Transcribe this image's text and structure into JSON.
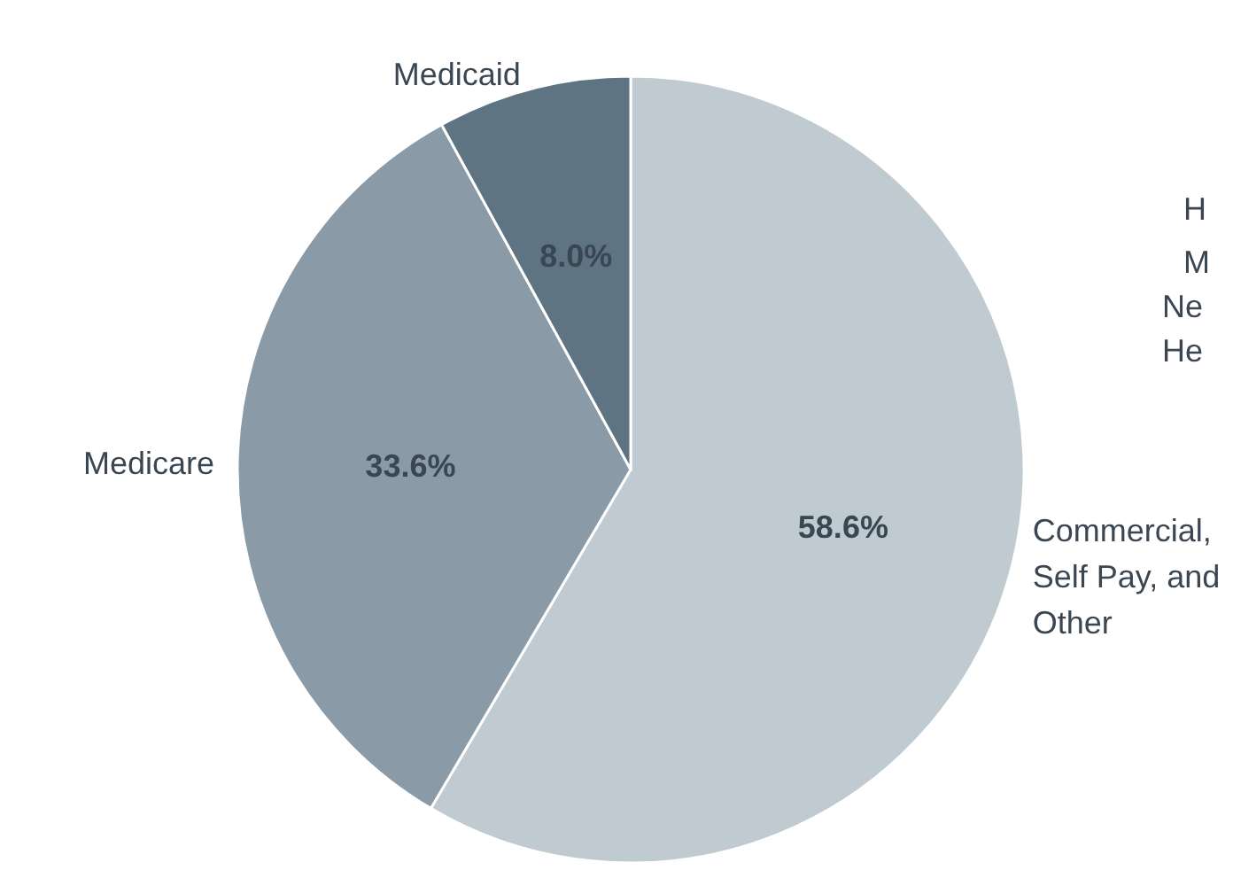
{
  "chart_data": {
    "type": "pie",
    "categories": [
      "Commercial, Self Pay, and Other",
      "Medicare",
      "Medicaid"
    ],
    "values": [
      58.6,
      33.6,
      8.0
    ],
    "value_labels": [
      "58.6%",
      "33.6%",
      "8.0%"
    ],
    "colors": [
      "#c0cad1",
      "#8a9ba7",
      "#5f7482"
    ],
    "annotations": [
      "H",
      "M",
      "Ne",
      "He"
    ]
  }
}
